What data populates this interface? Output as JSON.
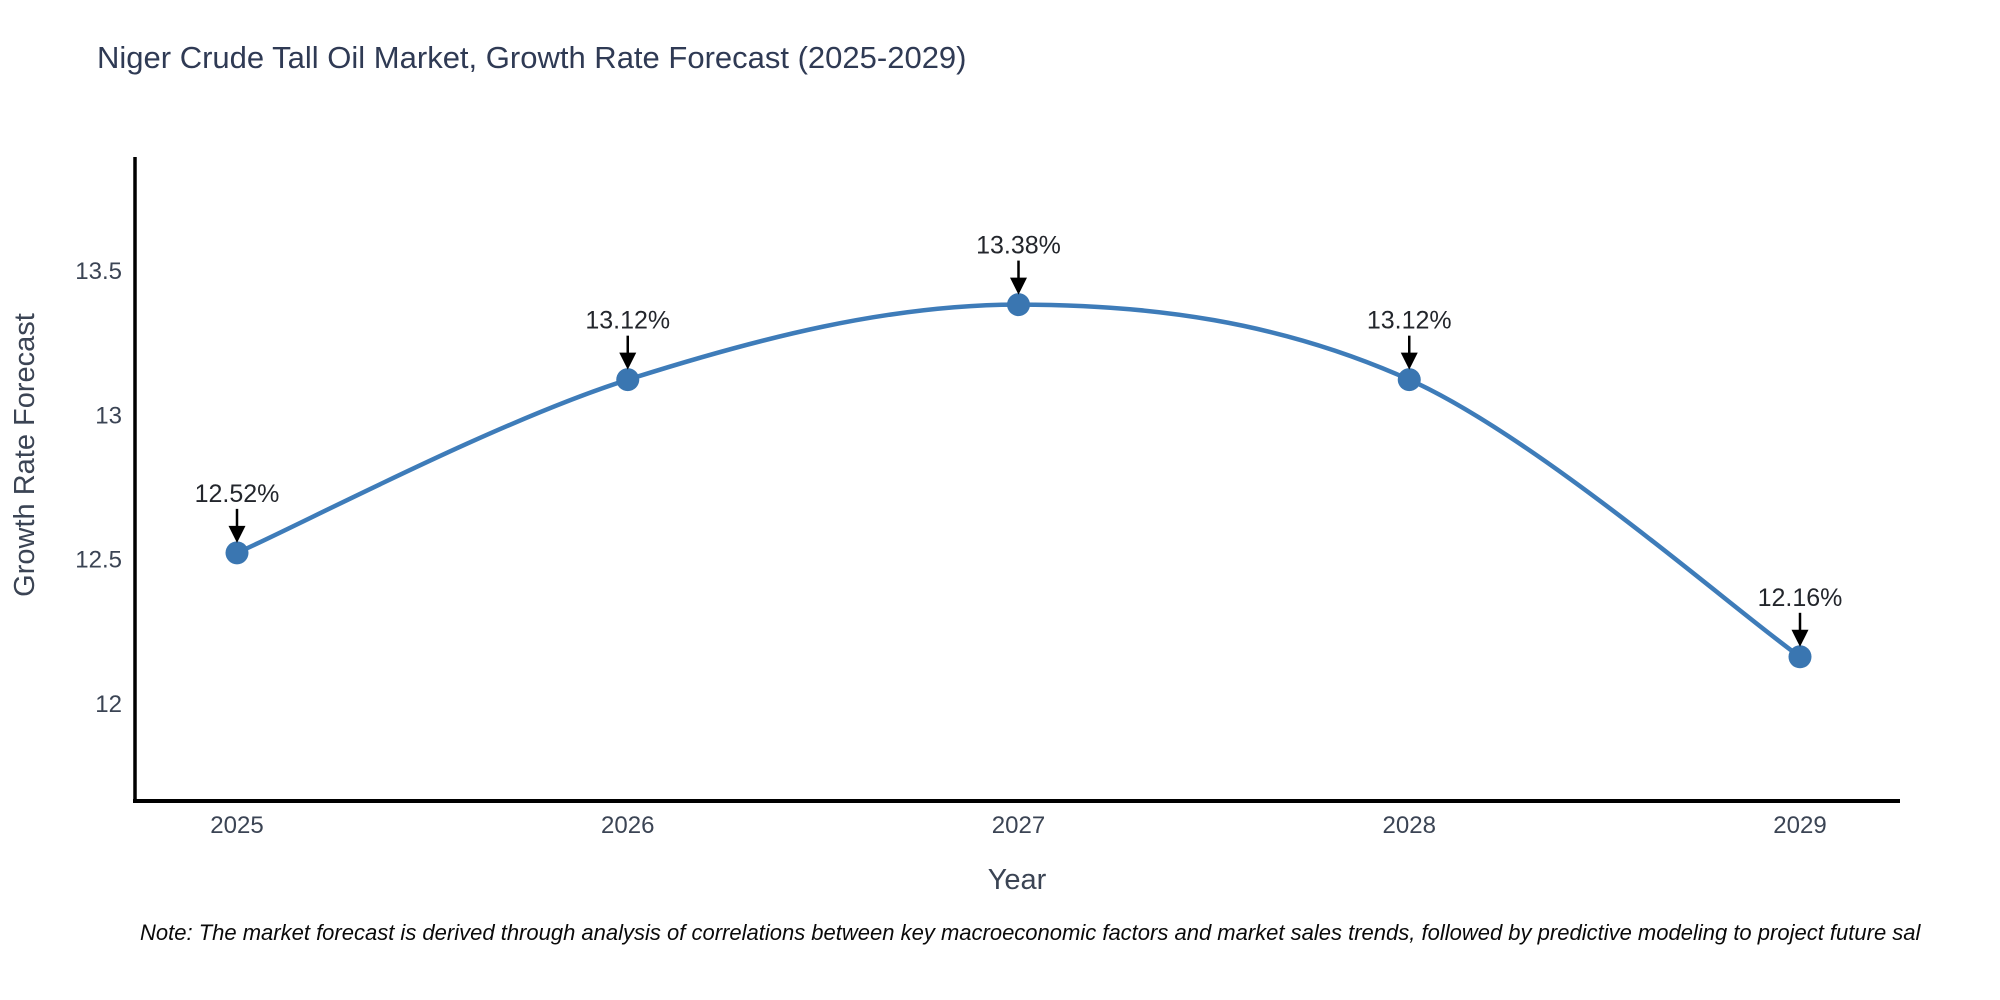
{
  "page": {
    "background": "#ffffff"
  },
  "chart_data": {
    "type": "line",
    "title": "Niger Crude Tall Oil Market, Growth Rate Forecast (2025-2029)",
    "xlabel": "Year",
    "ylabel": "Growth Rate Forecast",
    "x": [
      "2025",
      "2026",
      "2027",
      "2028",
      "2029"
    ],
    "series": [
      {
        "name": "Growth Rate Forecast",
        "values": [
          12.52,
          13.12,
          13.38,
          13.12,
          12.16
        ]
      }
    ],
    "point_labels": [
      "12.52%",
      "13.12%",
      "13.38%",
      "13.12%",
      "12.16%"
    ],
    "y_ticks": {
      "values": [
        13.5,
        13.0,
        12.5,
        12.0
      ],
      "labels": [
        "13.5",
        "13",
        "12.5",
        "12"
      ]
    },
    "ylim": [
      11.65,
      13.9
    ],
    "grid": false,
    "legend": "none",
    "annotations": "down-arrow pointing to each data point with percent label above",
    "colors": {
      "line": "#3e7cb9",
      "marker": "#3a76b1",
      "arrow": "#000000",
      "axis_line": "#000000",
      "title_text": "#2f3a54",
      "axis_text": "#3b4454",
      "point_label_text": "#23262c"
    }
  },
  "note": {
    "text": "Note: The market forecast is derived through analysis of correlations between key macroeconomic factors and market sales trends, followed by predictive modeling to project future sal"
  }
}
